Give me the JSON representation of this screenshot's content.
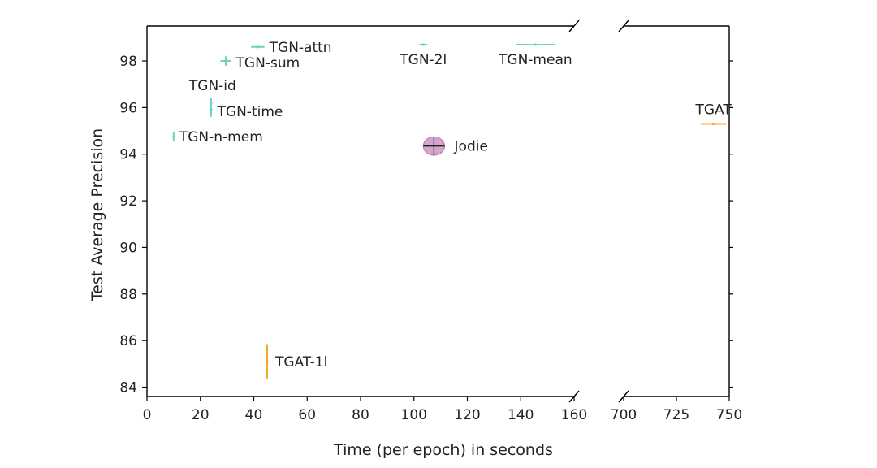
{
  "chart_data": {
    "type": "scatter",
    "xlabel": "Time (per epoch) in seconds",
    "ylabel": "Test Average Precision",
    "broken_x_axis": true,
    "x_segments": [
      {
        "xlim": [
          0,
          160
        ],
        "xticks": [
          "0",
          "20",
          "40",
          "60",
          "80",
          "100",
          "120",
          "140",
          "160"
        ]
      },
      {
        "xlim": [
          700,
          750
        ],
        "xticks": [
          "700",
          "725",
          "750"
        ]
      }
    ],
    "ylim": [
      83.6,
      99.5
    ],
    "yticks": [
      "84",
      "86",
      "88",
      "90",
      "92",
      "94",
      "96",
      "98"
    ],
    "grid": false,
    "colors": {
      "tgn": "#6fd0c4",
      "tgat": "#f5a623",
      "jodie": "#9a3d8c"
    },
    "points": [
      {
        "label": "TGN-attn",
        "x": 41.5,
        "y": 98.6,
        "xerr": 2.5,
        "yerr": 0.05,
        "group": "tgn"
      },
      {
        "label": "TGN-sum",
        "x": 29.5,
        "y": 98.0,
        "xerr": 2.0,
        "yerr": 0.2,
        "group": "tgn"
      },
      {
        "label": "TGN-2l",
        "x": 103.5,
        "y": 98.7,
        "xerr": 1.5,
        "yerr": 0.02,
        "group": "tgn"
      },
      {
        "label": "TGN-mean",
        "x": 145.5,
        "y": 98.7,
        "xerr": 7.5,
        "yerr": 0.02,
        "group": "tgn"
      },
      {
        "label": "TGN-id",
        "x": 24.0,
        "y": 96.2,
        "xerr": 0.3,
        "yerr": 0.2,
        "group": "tgn",
        "label_pos": "above-left"
      },
      {
        "label": "TGN-time",
        "x": 24.0,
        "y": 95.9,
        "xerr": 0.5,
        "yerr": 0.3,
        "group": "tgn"
      },
      {
        "label": "TGN-n-mem",
        "x": 10.0,
        "y": 94.75,
        "xerr": 0.3,
        "yerr": 0.2,
        "group": "tgn"
      },
      {
        "label": "Jodie",
        "x": 107.5,
        "y": 94.35,
        "xerr": 4.0,
        "yerr": 0.4,
        "group": "jodie",
        "ellipse": true
      },
      {
        "label": "TGAT-1l",
        "x": 45.0,
        "y": 85.1,
        "xerr": 0.3,
        "yerr": 0.75,
        "group": "tgat"
      },
      {
        "label": "TGAT",
        "x": 742.5,
        "y": 95.3,
        "xerr": 6.0,
        "yerr": 0.03,
        "group": "tgat",
        "label_pos": "above-left"
      }
    ]
  }
}
